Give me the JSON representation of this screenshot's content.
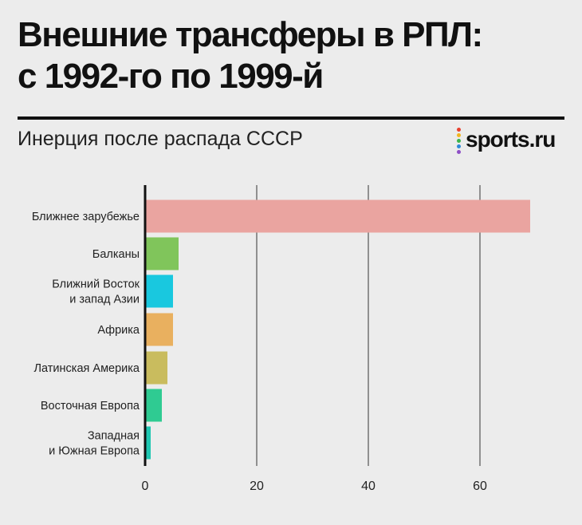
{
  "header": {
    "title_line1": "Внешние трансферы в РПЛ:",
    "title_line2": "с 1992-го по 1999-й",
    "subtitle": "Инерция после распада СССР",
    "logo_text": "sports.ru",
    "logo_icon": "sports-ru-dots-logo"
  },
  "chart_data": {
    "type": "bar",
    "orientation": "horizontal",
    "title": "Внешние трансферы в РПЛ: с 1992-го по 1999-й",
    "subtitle": "Инерция после распада СССР",
    "xlabel": "",
    "ylabel": "",
    "xlim": [
      0,
      70
    ],
    "xticks": [
      0,
      20,
      40,
      60
    ],
    "grid": true,
    "legend": "none",
    "categories": [
      [
        "Ближнее зарубежье"
      ],
      [
        "Балканы"
      ],
      [
        "Ближний Восток",
        "и запад Азии"
      ],
      [
        "Африка"
      ],
      [
        "Латинская Америка"
      ],
      [
        "Восточная Европа"
      ],
      [
        "Западная",
        "и Южная Европа"
      ]
    ],
    "values": [
      69,
      6,
      5,
      5,
      4,
      3,
      1
    ],
    "colors": [
      "#eaa4a0",
      "#80c55b",
      "#19c8df",
      "#e9b05f",
      "#c9bc5e",
      "#2fcb92",
      "#1fc7b2"
    ]
  }
}
